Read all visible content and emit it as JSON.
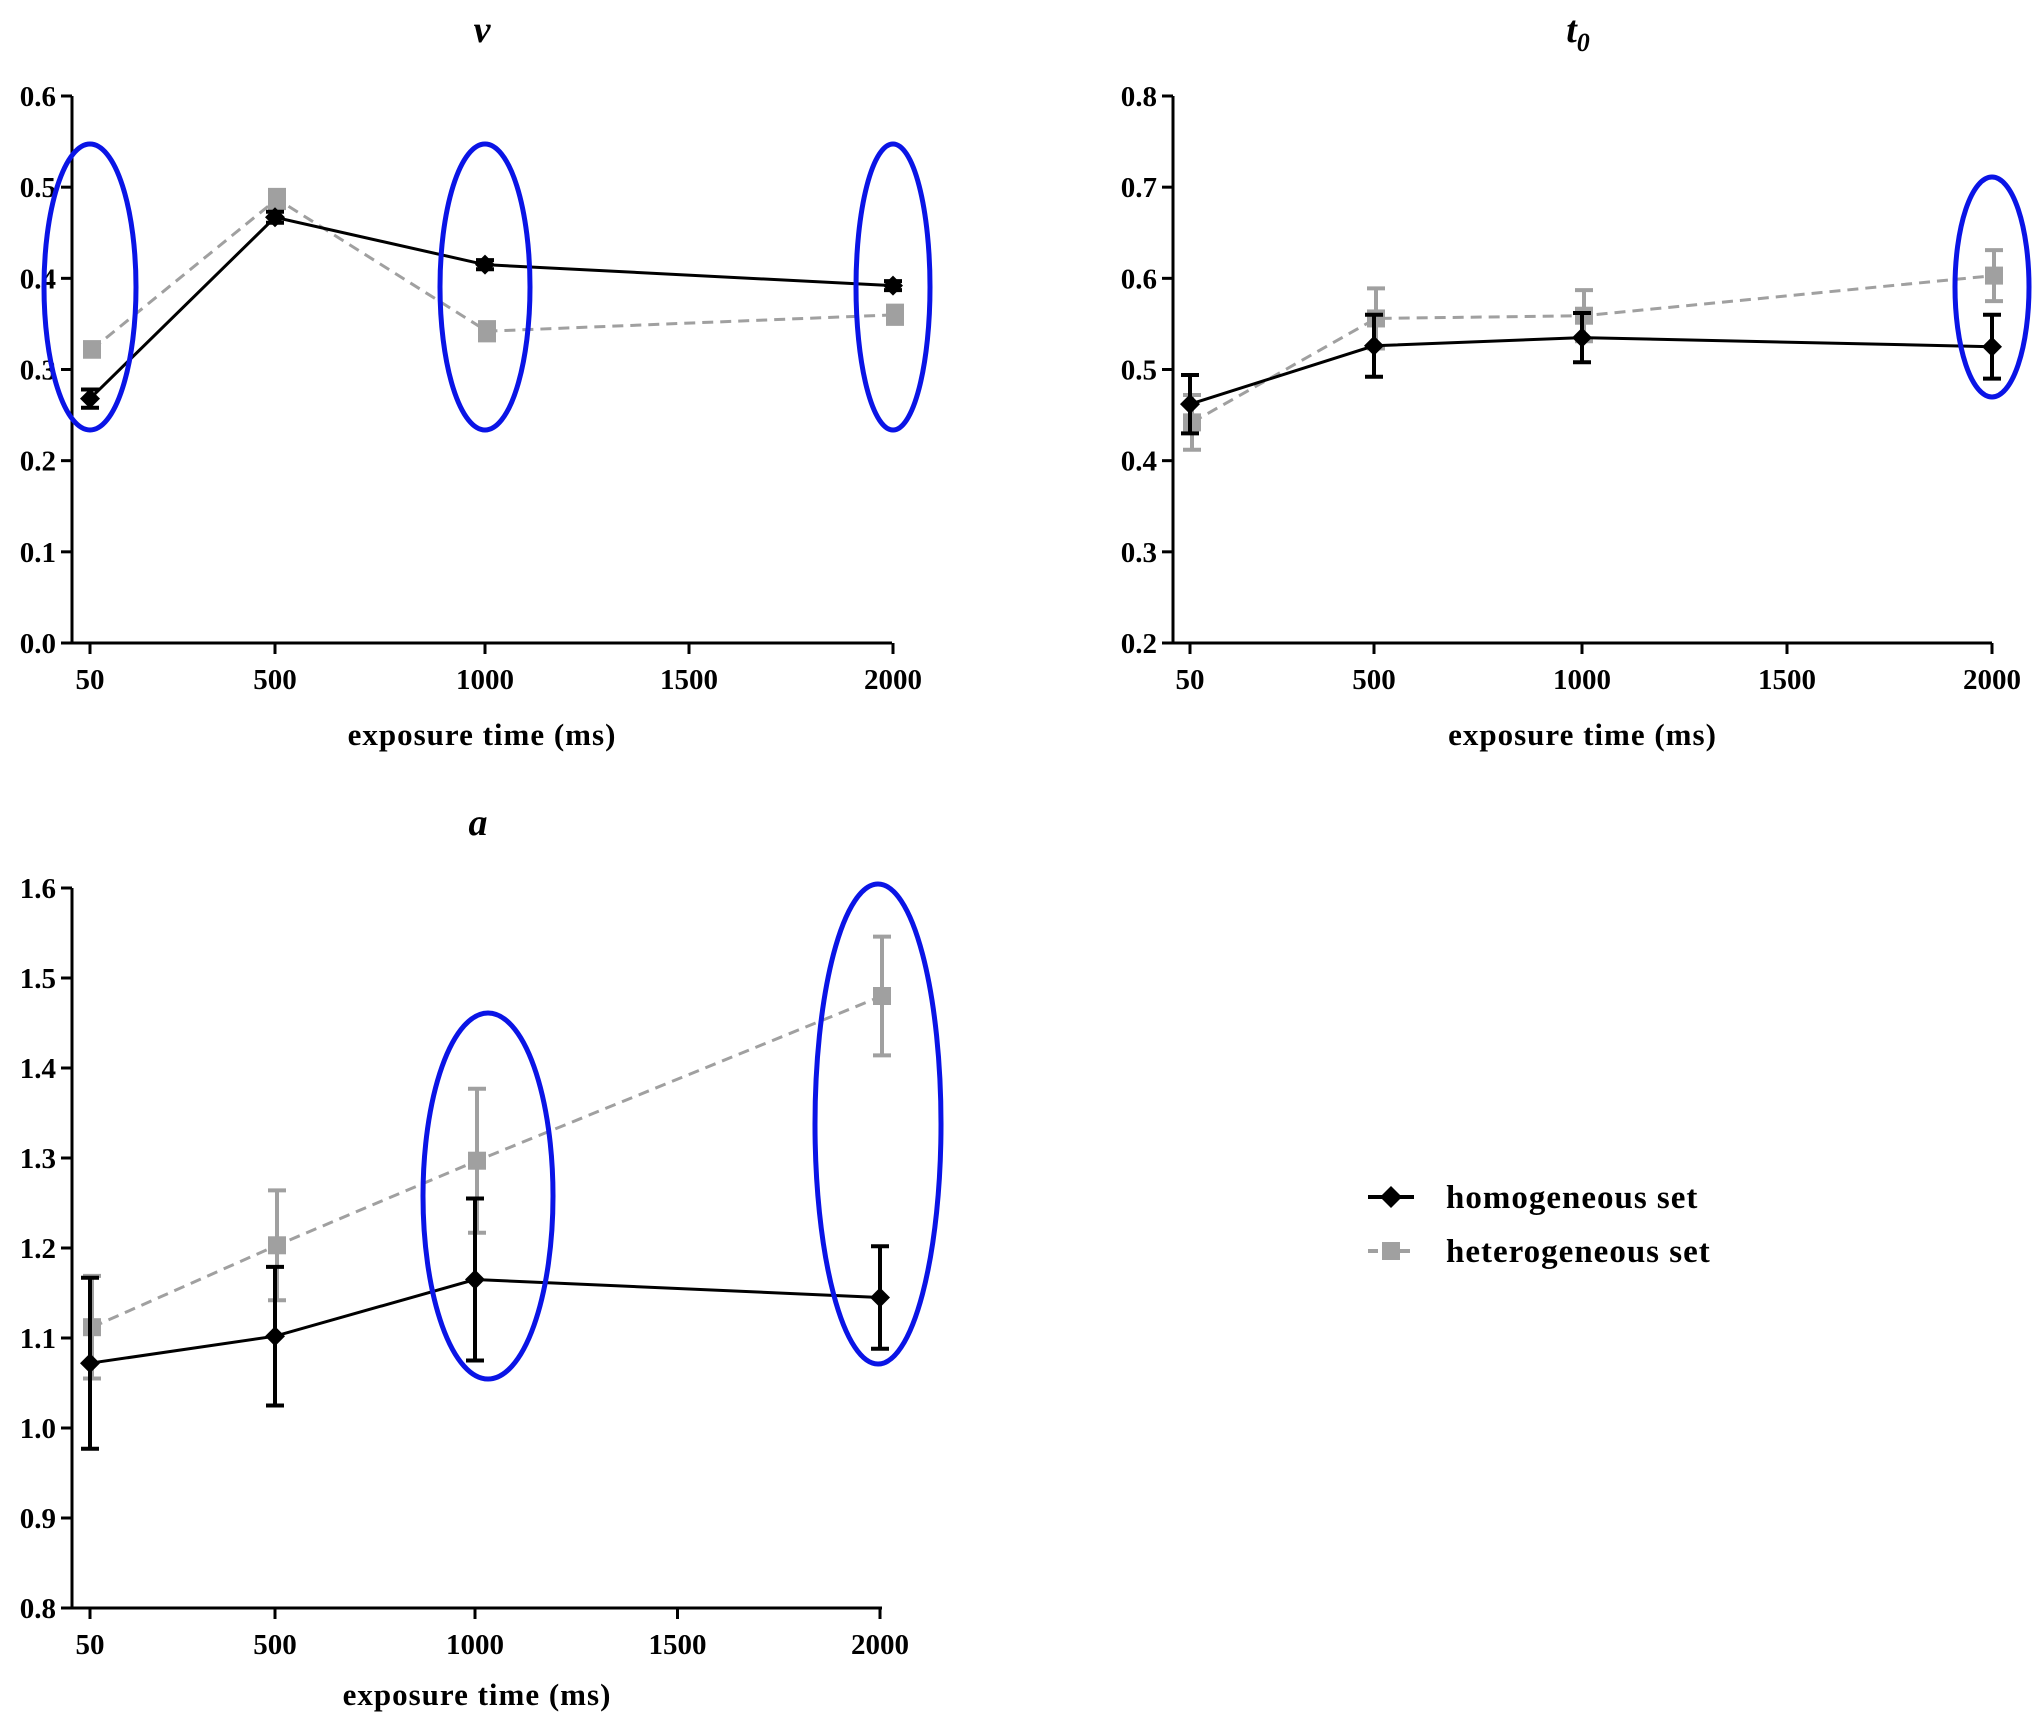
{
  "chart_data": [
    {
      "type": "line",
      "title": "v",
      "xlabel": "exposure time (ms)",
      "ylabel": "",
      "x": [
        50,
        500,
        1000,
        2000
      ],
      "x_ticks": [
        "50",
        "500",
        "1000",
        "1500",
        "2000"
      ],
      "x_tick_values": [
        50,
        500,
        1000,
        1500,
        2000
      ],
      "ylim": [
        0.0,
        0.6
      ],
      "y_ticks": [
        "0.0",
        "0.1",
        "0.2",
        "0.3",
        "0.4",
        "0.5",
        "0.6"
      ],
      "series": [
        {
          "name": "homogeneous set",
          "values": [
            0.268,
            0.467,
            0.415,
            0.392
          ],
          "errors": [
            0.01,
            0.006,
            0.005,
            0.005
          ]
        },
        {
          "name": "heterogeneous set",
          "values": [
            0.322,
            0.487,
            0.342,
            0.36
          ],
          "errors": [
            0.008,
            0.01,
            0.01,
            0.01
          ]
        }
      ],
      "highlighted_x": [
        50,
        1000,
        2000
      ]
    },
    {
      "type": "line",
      "title": "t",
      "title_subscript": "0",
      "xlabel": "exposure time (ms)",
      "ylabel": "",
      "x": [
        50,
        500,
        1000,
        2000
      ],
      "x_ticks": [
        "50",
        "500",
        "1000",
        "1500",
        "2000"
      ],
      "x_tick_values": [
        50,
        500,
        1000,
        1500,
        2000
      ],
      "ylim": [
        0.2,
        0.8
      ],
      "y_ticks": [
        "0.2",
        "0.3",
        "0.4",
        "0.5",
        "0.6",
        "0.7",
        "0.8"
      ],
      "series": [
        {
          "name": "homogeneous set",
          "values": [
            0.462,
            0.526,
            0.535,
            0.525
          ],
          "errors": [
            0.032,
            0.034,
            0.027,
            0.035
          ]
        },
        {
          "name": "heterogeneous set",
          "values": [
            0.442,
            0.556,
            0.559,
            0.603
          ],
          "errors": [
            0.03,
            0.033,
            0.028,
            0.028
          ]
        }
      ],
      "highlighted_x": [
        2000
      ]
    },
    {
      "type": "line",
      "title": "a",
      "xlabel": "exposure time (ms)",
      "ylabel": "",
      "x": [
        50,
        500,
        1000,
        2000
      ],
      "x_ticks": [
        "50",
        "500",
        "1000",
        "1500",
        "2000"
      ],
      "x_tick_values": [
        50,
        500,
        1000,
        1500,
        2000
      ],
      "ylim": [
        0.8,
        1.6
      ],
      "y_ticks": [
        "0.8",
        "0.9",
        "1.0",
        "1.1",
        "1.2",
        "1.3",
        "1.4",
        "1.5",
        "1.6"
      ],
      "series": [
        {
          "name": "homogeneous set",
          "values": [
            1.072,
            1.102,
            1.165,
            1.145
          ],
          "errors": [
            0.095,
            0.077,
            0.09,
            0.057
          ]
        },
        {
          "name": "heterogeneous set",
          "values": [
            1.112,
            1.203,
            1.297,
            1.48
          ],
          "errors": [
            0.057,
            0.061,
            0.08,
            0.066
          ]
        }
      ],
      "highlighted_x": [
        1000,
        2000
      ]
    }
  ],
  "legend": {
    "items": [
      {
        "label": "homogeneous set",
        "color": "#000000",
        "marker": "diamond",
        "dash": false
      },
      {
        "label": "heterogeneous set",
        "color": "#a0a0a0",
        "marker": "square",
        "dash": true
      }
    ]
  },
  "colors": {
    "homogeneous": "#000000",
    "heterogeneous": "#a0a0a0",
    "highlight": "#0a14e6"
  }
}
